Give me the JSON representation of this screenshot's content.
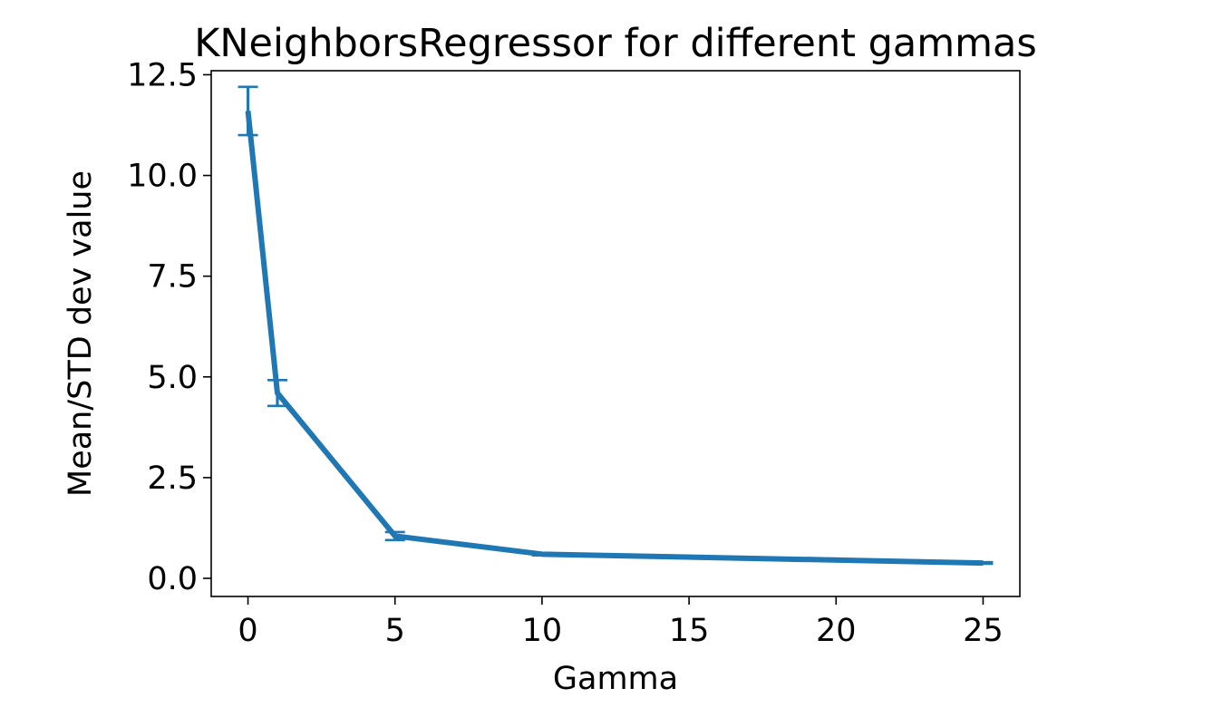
{
  "chart_data": {
    "type": "line",
    "title": "KNeighborsRegressor for different gammas",
    "xlabel": "Gamma",
    "ylabel": "Mean/STD dev value",
    "xlim": [
      -1.25,
      26.25
    ],
    "ylim": [
      -0.45,
      12.6
    ],
    "x_ticks": [
      0,
      5,
      10,
      15,
      20,
      25
    ],
    "x_tick_labels": [
      "0",
      "5",
      "10",
      "15",
      "20",
      "25"
    ],
    "y_ticks": [
      0.0,
      2.5,
      5.0,
      7.5,
      10.0,
      12.5
    ],
    "y_tick_labels": [
      "0.0",
      "2.5",
      "5.0",
      "7.5",
      "10.0",
      "12.5"
    ],
    "grid": false,
    "legend": "none",
    "series": [
      {
        "color": "#1f77b4",
        "points": [
          {
            "x": 0,
            "y": 11.6,
            "err": 0.6
          },
          {
            "x": 1,
            "y": 4.6,
            "err": 0.32
          },
          {
            "x": 5,
            "y": 1.05,
            "err": 0.1
          },
          {
            "x": 10,
            "y": 0.6,
            "err": 0.03
          },
          {
            "x": 25,
            "y": 0.38,
            "err": 0.02
          }
        ]
      }
    ]
  }
}
